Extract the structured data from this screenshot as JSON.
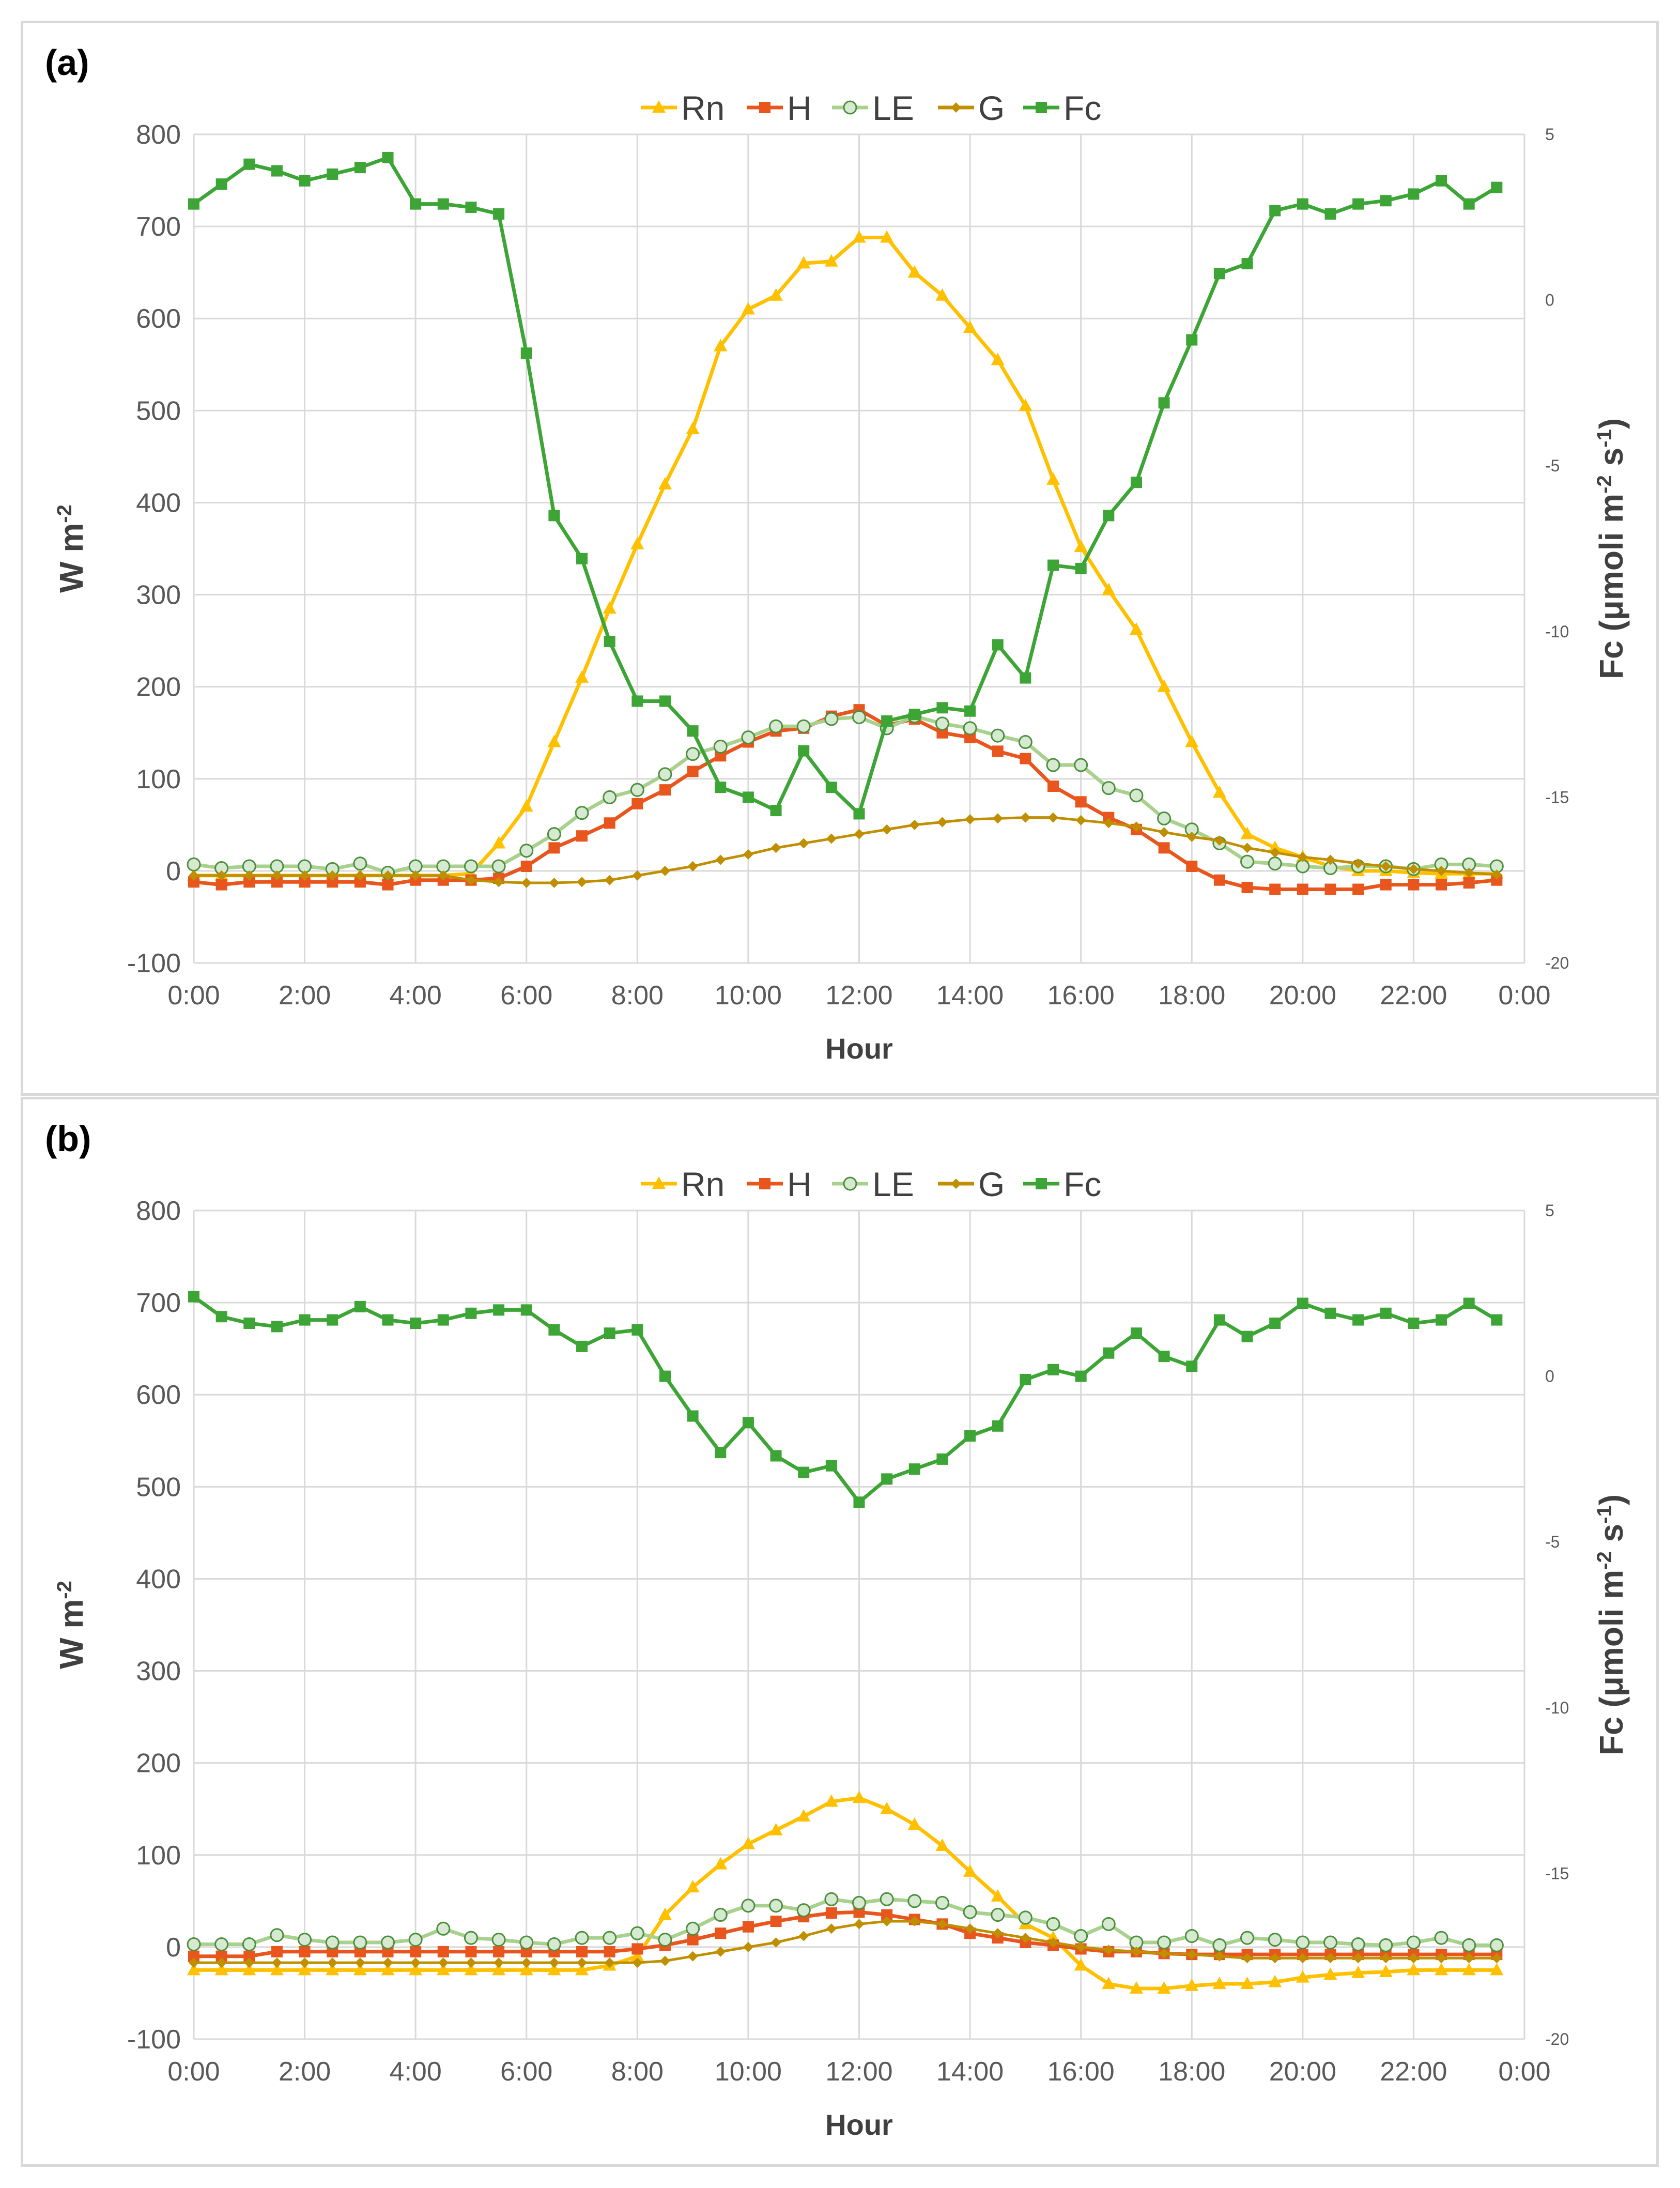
{
  "chart_data": [
    {
      "type": "line",
      "panel_label": "(a)",
      "xlabel": "Hour",
      "ylabel_left": "W m",
      "ylabel_left_sup": "-2",
      "ylabel_right_parts": [
        "Fc (μmoli m",
        "-2",
        " s",
        "-1",
        ")"
      ],
      "ylim_left": [
        -100,
        800
      ],
      "ylim_right": [
        -20,
        5
      ],
      "yticks_left": [
        -100,
        0,
        100,
        200,
        300,
        400,
        500,
        600,
        700,
        800
      ],
      "yticks_right": [
        -20,
        -15,
        -10,
        -5,
        0,
        5
      ],
      "xtick_labels": [
        "0:00",
        "2:00",
        "4:00",
        "6:00",
        "8:00",
        "10:00",
        "12:00",
        "14:00",
        "16:00",
        "18:00",
        "20:00",
        "22:00",
        "0:00"
      ],
      "x": [
        "0:00",
        "0:30",
        "1:00",
        "1:30",
        "2:00",
        "2:30",
        "3:00",
        "3:30",
        "4:00",
        "4:30",
        "5:00",
        "5:30",
        "6:00",
        "6:30",
        "7:00",
        "7:30",
        "8:00",
        "8:30",
        "9:00",
        "9:30",
        "10:00",
        "10:30",
        "11:00",
        "11:30",
        "12:00",
        "12:30",
        "13:00",
        "13:30",
        "14:00",
        "14:30",
        "15:00",
        "15:30",
        "16:00",
        "16:30",
        "17:00",
        "17:30",
        "18:00",
        "18:30",
        "19:00",
        "19:30",
        "20:00",
        "20:30",
        "21:00",
        "21:30",
        "22:00",
        "22:30",
        "23:00",
        "23:30"
      ],
      "grid": true,
      "legend_position": "top",
      "series": [
        {
          "name": "Rn",
          "axis": "left",
          "color": "#ffc000",
          "marker": "triangle",
          "values": [
            -5,
            -5,
            -5,
            -5,
            -5,
            -5,
            -5,
            -5,
            -5,
            -5,
            -3,
            30,
            70,
            140,
            210,
            285,
            355,
            420,
            480,
            570,
            610,
            625,
            660,
            662,
            688,
            688,
            650,
            625,
            590,
            555,
            505,
            425,
            352,
            305,
            262,
            200,
            140,
            85,
            40,
            25,
            15,
            5,
            0,
            0,
            -2,
            -3,
            -3,
            -3
          ]
        },
        {
          "name": "H",
          "axis": "left",
          "color": "#e8561e",
          "marker": "square",
          "values": [
            -12,
            -15,
            -12,
            -12,
            -12,
            -12,
            -12,
            -15,
            -10,
            -10,
            -10,
            -8,
            5,
            25,
            38,
            52,
            73,
            88,
            108,
            125,
            140,
            152,
            155,
            168,
            175,
            158,
            165,
            150,
            145,
            130,
            122,
            92,
            75,
            58,
            45,
            25,
            5,
            -10,
            -18,
            -20,
            -20,
            -20,
            -20,
            -15,
            -15,
            -15,
            -13,
            -10
          ]
        },
        {
          "name": "LE",
          "axis": "left",
          "color": "#a9d18e",
          "marker": "circle",
          "values": [
            7,
            3,
            5,
            5,
            5,
            2,
            8,
            -2,
            5,
            5,
            5,
            5,
            22,
            40,
            63,
            80,
            88,
            105,
            127,
            135,
            145,
            157,
            157,
            165,
            167,
            155,
            168,
            160,
            155,
            147,
            140,
            115,
            115,
            90,
            82,
            57,
            45,
            30,
            10,
            8,
            5,
            3,
            5,
            5,
            2,
            7,
            7,
            5
          ]
        },
        {
          "name": "G",
          "axis": "left",
          "color": "#bf8f00",
          "marker": "diamond",
          "values": [
            -5,
            -5,
            -5,
            -5,
            -5,
            -5,
            -5,
            -5,
            -5,
            -5,
            -10,
            -12,
            -13,
            -13,
            -12,
            -10,
            -5,
            0,
            5,
            12,
            18,
            25,
            30,
            35,
            40,
            45,
            50,
            53,
            56,
            57,
            58,
            58,
            55,
            52,
            48,
            42,
            37,
            33,
            25,
            20,
            15,
            12,
            8,
            5,
            2,
            0,
            -2,
            -4
          ]
        },
        {
          "name": "Fc",
          "axis": "right",
          "color": "#3da535",
          "marker": "square",
          "values": [
            2.9,
            3.5,
            4.1,
            3.9,
            3.6,
            3.8,
            4.0,
            4.3,
            2.9,
            2.9,
            2.8,
            2.6,
            -1.6,
            -6.5,
            -7.8,
            -10.3,
            -12.1,
            -12.1,
            -13.0,
            -14.7,
            -15.0,
            -15.4,
            -13.6,
            -14.7,
            -15.5,
            -12.7,
            -12.5,
            -12.3,
            -12.4,
            -10.4,
            -11.4,
            -8.0,
            -8.1,
            -6.5,
            -5.5,
            -3.1,
            -1.2,
            0.8,
            1.1,
            2.7,
            2.9,
            2.6,
            2.9,
            3.0,
            3.2,
            3.6,
            2.9,
            3.4
          ]
        }
      ]
    },
    {
      "type": "line",
      "panel_label": "(b)",
      "xlabel": "Hour",
      "ylabel_left": "W m",
      "ylabel_left_sup": "-2",
      "ylabel_right_parts": [
        "Fc (μmoli m",
        "-2",
        " s",
        "-1",
        ")"
      ],
      "ylim_left": [
        -100,
        800
      ],
      "ylim_right": [
        -20,
        5
      ],
      "yticks_left": [
        -100,
        0,
        100,
        200,
        300,
        400,
        500,
        600,
        700,
        800
      ],
      "yticks_right": [
        -20,
        -15,
        -10,
        -5,
        0,
        5
      ],
      "xtick_labels": [
        "0:00",
        "2:00",
        "4:00",
        "6:00",
        "8:00",
        "10:00",
        "12:00",
        "14:00",
        "16:00",
        "18:00",
        "20:00",
        "22:00",
        "0:00"
      ],
      "x": [
        "0:00",
        "0:30",
        "1:00",
        "1:30",
        "2:00",
        "2:30",
        "3:00",
        "3:30",
        "4:00",
        "4:30",
        "5:00",
        "5:30",
        "6:00",
        "6:30",
        "7:00",
        "7:30",
        "8:00",
        "8:30",
        "9:00",
        "9:30",
        "10:00",
        "10:30",
        "11:00",
        "11:30",
        "12:00",
        "12:30",
        "13:00",
        "13:30",
        "14:00",
        "14:30",
        "15:00",
        "15:30",
        "16:00",
        "16:30",
        "17:00",
        "17:30",
        "18:00",
        "18:30",
        "19:00",
        "19:30",
        "20:00",
        "20:30",
        "21:00",
        "21:30",
        "22:00",
        "22:30",
        "23:00",
        "23:30"
      ],
      "grid": true,
      "legend_position": "top",
      "series": [
        {
          "name": "Rn",
          "axis": "left",
          "color": "#ffc000",
          "marker": "triangle",
          "values": [
            -25,
            -25,
            -25,
            -25,
            -25,
            -25,
            -25,
            -25,
            -25,
            -25,
            -25,
            -25,
            -25,
            -25,
            -25,
            -20,
            -10,
            35,
            65,
            90,
            112,
            127,
            142,
            158,
            162,
            150,
            133,
            110,
            82,
            55,
            25,
            10,
            -20,
            -40,
            -45,
            -45,
            -42,
            -40,
            -40,
            -38,
            -33,
            -30,
            -28,
            -27,
            -25,
            -25,
            -25,
            -25
          ]
        },
        {
          "name": "H",
          "axis": "left",
          "color": "#e8561e",
          "marker": "square",
          "values": [
            -10,
            -10,
            -10,
            -5,
            -5,
            -5,
            -5,
            -5,
            -5,
            -5,
            -5,
            -5,
            -5,
            -5,
            -5,
            -5,
            -2,
            2,
            8,
            15,
            22,
            28,
            33,
            37,
            38,
            35,
            30,
            25,
            15,
            10,
            5,
            2,
            -2,
            -5,
            -5,
            -7,
            -8,
            -8,
            -8,
            -8,
            -8,
            -8,
            -8,
            -8,
            -8,
            -8,
            -8,
            -8
          ]
        },
        {
          "name": "LE",
          "axis": "left",
          "color": "#a9d18e",
          "marker": "circle",
          "values": [
            3,
            3,
            3,
            13,
            8,
            5,
            5,
            5,
            8,
            20,
            10,
            8,
            5,
            3,
            10,
            10,
            15,
            8,
            20,
            35,
            45,
            45,
            40,
            52,
            48,
            52,
            50,
            48,
            38,
            35,
            32,
            25,
            12,
            25,
            5,
            5,
            12,
            2,
            10,
            8,
            5,
            5,
            3,
            2,
            5,
            10,
            2,
            2
          ]
        },
        {
          "name": "G",
          "axis": "left",
          "color": "#bf8f00",
          "marker": "diamond",
          "values": [
            -17,
            -17,
            -17,
            -17,
            -17,
            -17,
            -17,
            -17,
            -17,
            -17,
            -17,
            -17,
            -17,
            -17,
            -17,
            -17,
            -17,
            -15,
            -10,
            -5,
            0,
            5,
            12,
            20,
            25,
            28,
            28,
            25,
            20,
            15,
            10,
            5,
            0,
            -3,
            -5,
            -7,
            -8,
            -10,
            -12,
            -12,
            -12,
            -12,
            -12,
            -12,
            -12,
            -12,
            -12,
            -12
          ]
        },
        {
          "name": "Fc",
          "axis": "right",
          "color": "#3da535",
          "marker": "square",
          "values": [
            2.4,
            1.8,
            1.6,
            1.5,
            1.7,
            1.7,
            2.1,
            1.7,
            1.6,
            1.7,
            1.9,
            2.0,
            2.0,
            1.4,
            0.9,
            1.3,
            1.4,
            0.0,
            -1.2,
            -2.3,
            -1.4,
            -2.4,
            -2.9,
            -2.7,
            -3.8,
            -3.1,
            -2.8,
            -2.5,
            -1.8,
            -1.5,
            -0.1,
            0.2,
            0.0,
            0.7,
            1.3,
            0.6,
            0.3,
            1.7,
            1.2,
            1.6,
            2.2,
            1.9,
            1.7,
            1.9,
            1.6,
            1.7,
            2.2,
            1.7
          ]
        }
      ]
    }
  ]
}
